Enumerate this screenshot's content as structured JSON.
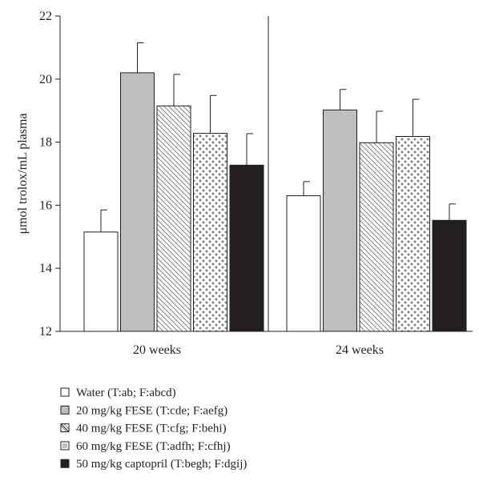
{
  "chart_data": {
    "type": "bar",
    "categories": [
      "20 weeks",
      "24 weeks"
    ],
    "ylabel": "μmol trolox/mL plasma",
    "ylim": [
      12,
      22
    ],
    "yticks": [
      12,
      14,
      16,
      18,
      20,
      22
    ],
    "grid": false,
    "legend_position": "bottom-left",
    "series": [
      {
        "name": "Water (T:ab; F:abcd)",
        "pattern": "empty",
        "values": [
          15.15,
          16.3
        ],
        "errors": [
          0.7,
          0.45
        ]
      },
      {
        "name": "20 mg/kg FESE (T:cde; F:aefg)",
        "pattern": "gray",
        "values": [
          20.2,
          19.02
        ],
        "errors": [
          0.95,
          0.65
        ]
      },
      {
        "name": "40 mg/kg FESE (T:cfg; F:behi)",
        "pattern": "hatch",
        "values": [
          19.15,
          17.98
        ],
        "errors": [
          1.0,
          1.0
        ]
      },
      {
        "name": "60 mg/kg FESE (T:adfh; F:cfhj)",
        "pattern": "dots",
        "values": [
          18.28,
          18.18
        ],
        "errors": [
          1.2,
          1.18
        ]
      },
      {
        "name": "50 mg/kg captopril (T:begh; F:dgij)",
        "pattern": "black",
        "values": [
          17.27,
          15.52
        ],
        "errors": [
          1.0,
          0.52
        ]
      }
    ]
  }
}
